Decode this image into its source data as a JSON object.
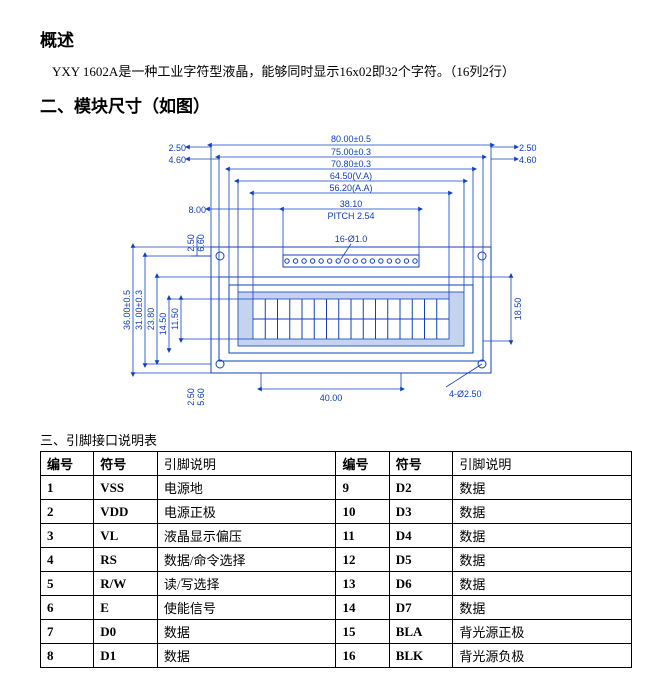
{
  "headings": {
    "overview": "概述",
    "dimensions": "二、模块尺寸（如图）",
    "pins_sub": "三、引脚接口说明表"
  },
  "overview_text": "YXY 1602A是一种工业字符型液晶，能够同时显示16x02即32个字符。（16列2行）",
  "diagram": {
    "labels": {
      "top1": "80.00±0.5",
      "top2": "75.00±0.3",
      "top3": "70.80±0.3",
      "top4": "64.50(V.A)",
      "top5": "56.20(A.A)",
      "pitch_w": "38.10",
      "pitch_text": "PITCH 2.54",
      "hole_top": "16-Ø1.0",
      "left_h1": "36.00±0.5",
      "left_h2": "31.00±0.3",
      "left_h3": "23.80",
      "left_h4": "14.50",
      "left_h5": "11.50",
      "tl_x": "2.50",
      "tl_y": "6.60",
      "tr_x": "2.50",
      "tr_y": "4.60",
      "tl2_x": "4.60",
      "ml_x": "8.00",
      "right_h": "18.50",
      "bl_x": "2.50",
      "bl_y": "5.60",
      "bottom_w": "40.00",
      "corner_hole": "4-Ø2.50"
    },
    "colors": {
      "ink": "#1040c0",
      "fill": "#c4d4ef",
      "bg": "#ffffff"
    }
  },
  "pin_table": {
    "headers": {
      "num": "编号",
      "sym": "符号",
      "desc": "引脚说明"
    },
    "rows": [
      {
        "a_num": "1",
        "a_sym": "VSS",
        "a_desc": "电源地",
        "b_num": "9",
        "b_sym": "D2",
        "b_desc": "数据"
      },
      {
        "a_num": "2",
        "a_sym": "VDD",
        "a_desc": "电源正极",
        "b_num": "10",
        "b_sym": "D3",
        "b_desc": "数据"
      },
      {
        "a_num": "3",
        "a_sym": "VL",
        "a_desc": "液晶显示偏压",
        "b_num": "11",
        "b_sym": "D4",
        "b_desc": "数据"
      },
      {
        "a_num": "4",
        "a_sym": "RS",
        "a_desc": "数据/命令选择",
        "b_num": "12",
        "b_sym": "D5",
        "b_desc": "数据"
      },
      {
        "a_num": "5",
        "a_sym": "R/W",
        "a_desc": "读/写选择",
        "b_num": "13",
        "b_sym": "D6",
        "b_desc": "数据"
      },
      {
        "a_num": "6",
        "a_sym": "E",
        "a_desc": "使能信号",
        "b_num": "14",
        "b_sym": "D7",
        "b_desc": "数据"
      },
      {
        "a_num": "7",
        "a_sym": "D0",
        "a_desc": "数据",
        "b_num": "15",
        "b_sym": "BLA",
        "b_desc": "背光源正极"
      },
      {
        "a_num": "8",
        "a_sym": "D1",
        "a_desc": "数据",
        "b_num": "16",
        "b_sym": "BLK",
        "b_desc": "背光源负极"
      }
    ]
  }
}
